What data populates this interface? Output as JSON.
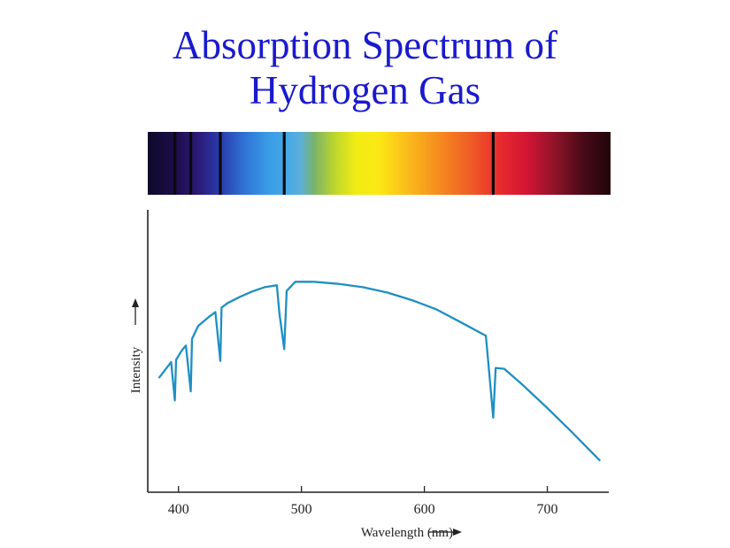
{
  "title": {
    "line1": "Absorption Spectrum of",
    "line2": "Hydrogen Gas"
  },
  "colors": {
    "title": "#1a1acc",
    "curve": "#1f8fc2",
    "axis": "#222222",
    "absorption_line": "#0a0a0a"
  },
  "spectrum_band": {
    "absorption_lines_nm": [
      397,
      410,
      434,
      486,
      656
    ]
  },
  "chart_data": {
    "type": "line",
    "title": "",
    "xlabel": "Wavelength (nm)",
    "ylabel": "Intensity",
    "xlim": [
      375,
      750
    ],
    "ylim": [
      0,
      1
    ],
    "x_ticks": [
      400,
      500,
      600,
      700
    ],
    "grid": false,
    "series": [
      {
        "x": [
          384,
          394,
          397,
          398,
          403,
          406,
          410,
          411,
          416,
          425,
          430,
          434,
          435,
          440,
          450,
          460,
          470,
          480,
          482,
          486,
          488,
          495,
          510,
          530,
          550,
          570,
          590,
          610,
          630,
          650,
          652,
          656,
          658,
          665,
          680,
          700,
          720,
          743
        ],
        "y": [
          0.404,
          0.461,
          0.325,
          0.469,
          0.504,
          0.519,
          0.357,
          0.543,
          0.589,
          0.622,
          0.638,
          0.465,
          0.654,
          0.67,
          0.692,
          0.711,
          0.726,
          0.733,
          0.635,
          0.507,
          0.713,
          0.745,
          0.745,
          0.738,
          0.726,
          0.707,
          0.68,
          0.647,
          0.601,
          0.554,
          0.461,
          0.264,
          0.44,
          0.437,
          0.38,
          0.298,
          0.213,
          0.111
        ]
      }
    ]
  }
}
